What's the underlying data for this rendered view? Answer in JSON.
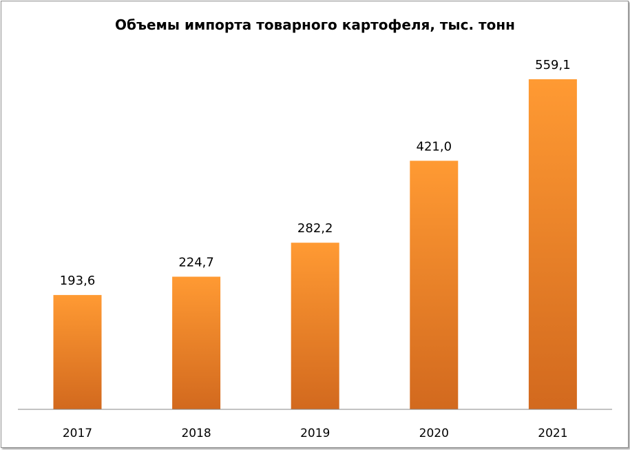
{
  "chart_data": {
    "type": "bar",
    "title": "Объемы импорта товарного картофеля, тыс. тонн",
    "categories": [
      "2017",
      "2018",
      "2019",
      "2020",
      "2021"
    ],
    "values": [
      193.6,
      224.7,
      282.2,
      421.0,
      559.1
    ],
    "value_labels": [
      "193,6",
      "224,7",
      "282,2",
      "421,0",
      "559,1"
    ],
    "xlabel": "",
    "ylabel": "",
    "ylim": [
      0,
      570
    ],
    "grid": false,
    "legend": "none",
    "colors": {
      "bar_top": "#FF9A33",
      "bar_bottom": "#D2691E",
      "axis": "#868686"
    }
  }
}
